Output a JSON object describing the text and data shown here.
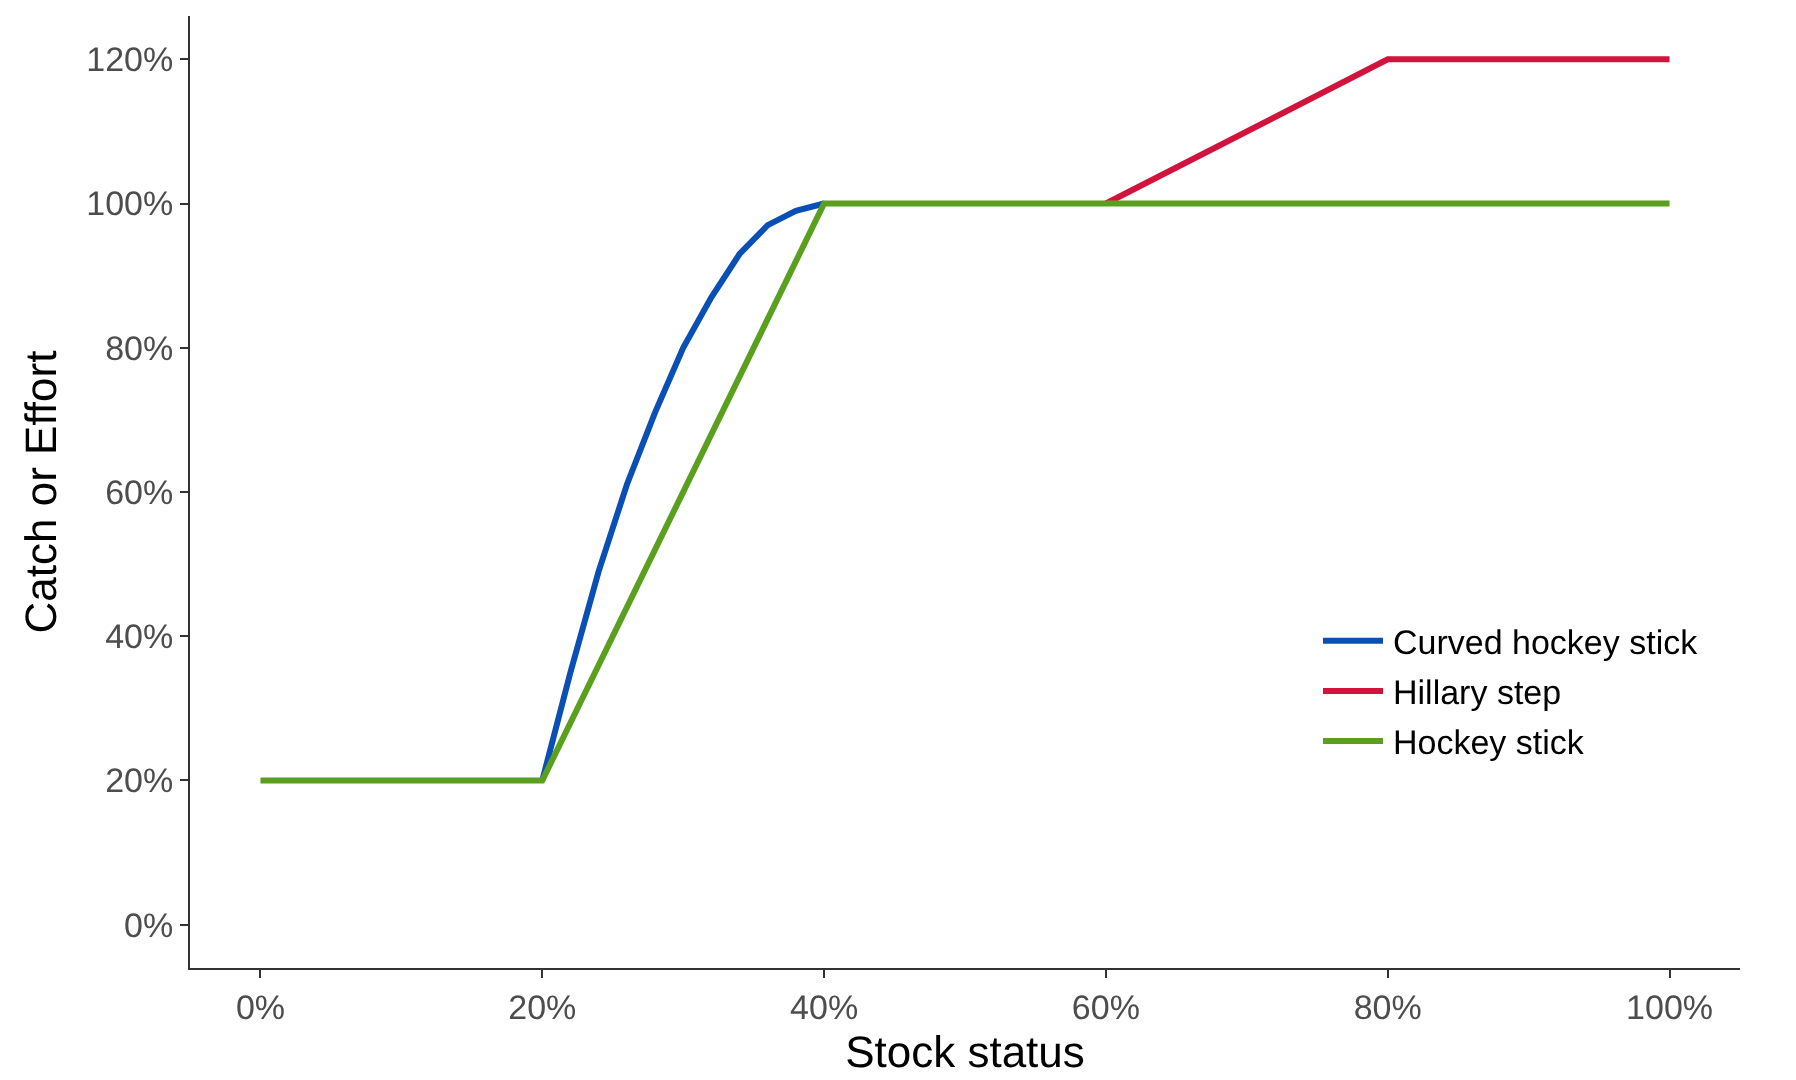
{
  "chart_data": {
    "type": "line",
    "xlabel": "Stock status",
    "ylabel": "Catch or Effort",
    "xlim": [
      -5,
      105
    ],
    "ylim": [
      -6,
      126
    ],
    "xticks": [
      {
        "value": 0,
        "label": "0%"
      },
      {
        "value": 20,
        "label": "20%"
      },
      {
        "value": 40,
        "label": "40%"
      },
      {
        "value": 60,
        "label": "60%"
      },
      {
        "value": 80,
        "label": "80%"
      },
      {
        "value": 100,
        "label": "100%"
      }
    ],
    "yticks": [
      {
        "value": 0,
        "label": "0%"
      },
      {
        "value": 20,
        "label": "20%"
      },
      {
        "value": 40,
        "label": "40%"
      },
      {
        "value": 60,
        "label": "60%"
      },
      {
        "value": 80,
        "label": "80%"
      },
      {
        "value": 100,
        "label": "100%"
      },
      {
        "value": 120,
        "label": "120%"
      }
    ],
    "legend": "bottom right",
    "line_style": "solid",
    "marker": "none",
    "series": [
      {
        "name": "Curved hockey stick",
        "color": "#0a4fb5",
        "x": [
          20,
          22,
          24,
          26,
          28,
          30,
          32,
          34,
          36,
          38,
          40
        ],
        "values": [
          20,
          35,
          49,
          61,
          71,
          80,
          87,
          93,
          97,
          99,
          100
        ]
      },
      {
        "name": "Hillary step",
        "color": "#d2143c",
        "x": [
          60,
          80,
          100
        ],
        "values": [
          100,
          120,
          120
        ]
      },
      {
        "name": "Hockey stick",
        "color": "#5aa01e",
        "x": [
          0,
          20,
          40,
          100
        ],
        "values": [
          20,
          20,
          100,
          100
        ]
      }
    ]
  }
}
